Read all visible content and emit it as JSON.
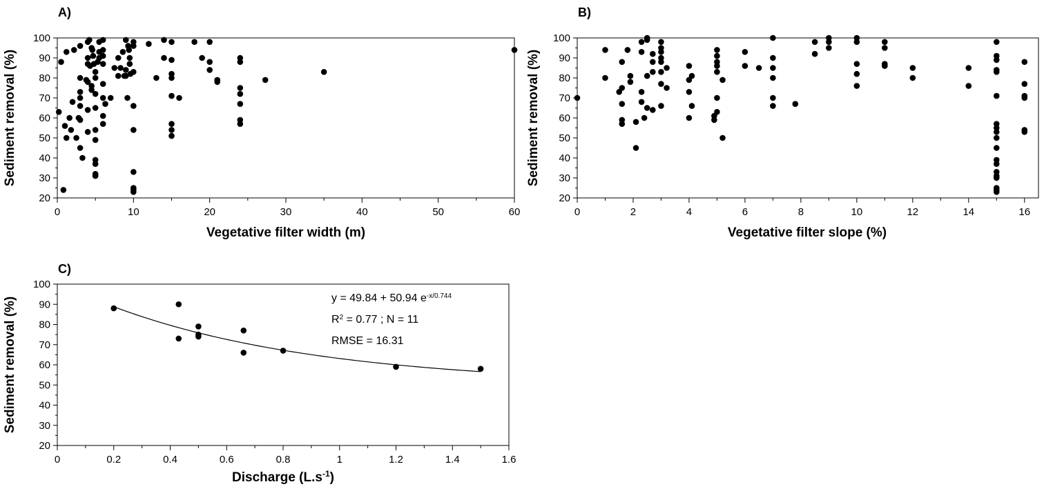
{
  "chart_data": [
    {
      "panel": "A)",
      "type": "scatter",
      "xlabel": "Vegetative filter width (m)",
      "ylabel": "Sediment removal (%)",
      "xlim": [
        0,
        60
      ],
      "ylim": [
        20,
        100
      ],
      "xticks": [
        0,
        10,
        20,
        30,
        40,
        50,
        60
      ],
      "xminor": 5,
      "yticks": [
        20,
        30,
        40,
        50,
        60,
        70,
        80,
        90,
        100
      ],
      "grid": false,
      "points": [
        [
          0.2,
          63
        ],
        [
          0.5,
          88
        ],
        [
          0.8,
          24
        ],
        [
          1,
          56
        ],
        [
          1.2,
          93
        ],
        [
          1.2,
          50
        ],
        [
          1.6,
          60
        ],
        [
          1.8,
          54
        ],
        [
          2,
          68
        ],
        [
          2.2,
          94
        ],
        [
          2.5,
          50
        ],
        [
          2.8,
          60
        ],
        [
          3,
          96
        ],
        [
          3,
          80
        ],
        [
          3,
          73
        ],
        [
          3,
          70
        ],
        [
          3,
          66
        ],
        [
          3,
          59
        ],
        [
          3,
          45
        ],
        [
          3.3,
          40
        ],
        [
          3.8,
          79
        ],
        [
          4,
          98
        ],
        [
          4,
          90
        ],
        [
          4,
          87
        ],
        [
          4,
          78
        ],
        [
          4,
          64
        ],
        [
          4,
          53
        ],
        [
          4.2,
          99
        ],
        [
          4.3,
          86
        ],
        [
          4.5,
          95
        ],
        [
          4.5,
          76
        ],
        [
          4.5,
          74
        ],
        [
          4.6,
          94
        ],
        [
          4.7,
          91
        ],
        [
          4.8,
          87
        ],
        [
          5,
          83
        ],
        [
          5,
          80
        ],
        [
          5,
          72
        ],
        [
          5,
          65
        ],
        [
          5,
          54
        ],
        [
          5,
          49
        ],
        [
          5,
          39
        ],
        [
          5,
          37
        ],
        [
          5,
          32
        ],
        [
          5,
          31
        ],
        [
          5.3,
          88
        ],
        [
          5.5,
          98
        ],
        [
          5.5,
          93
        ],
        [
          5.5,
          90
        ],
        [
          6,
          99
        ],
        [
          6,
          94
        ],
        [
          6,
          91
        ],
        [
          6,
          87
        ],
        [
          6,
          77
        ],
        [
          6,
          70
        ],
        [
          6,
          61
        ],
        [
          6,
          57
        ],
        [
          6.3,
          67
        ],
        [
          7,
          70
        ],
        [
          7.5,
          85
        ],
        [
          8,
          90
        ],
        [
          8,
          81
        ],
        [
          8.3,
          85
        ],
        [
          8.6,
          93
        ],
        [
          8.8,
          81
        ],
        [
          9,
          99
        ],
        [
          9,
          84
        ],
        [
          9,
          81
        ],
        [
          9.2,
          70
        ],
        [
          9.3,
          96
        ],
        [
          9.4,
          94
        ],
        [
          9.5,
          90
        ],
        [
          9.5,
          87
        ],
        [
          9.6,
          82
        ],
        [
          10,
          98
        ],
        [
          10,
          96
        ],
        [
          10,
          83
        ],
        [
          10,
          66
        ],
        [
          10,
          54
        ],
        [
          10,
          33
        ],
        [
          10,
          25
        ],
        [
          10,
          24
        ],
        [
          10,
          23
        ],
        [
          12,
          97
        ],
        [
          13,
          80
        ],
        [
          14,
          99
        ],
        [
          14,
          90
        ],
        [
          15,
          98
        ],
        [
          15,
          89
        ],
        [
          15,
          82
        ],
        [
          15,
          80
        ],
        [
          15,
          71
        ],
        [
          15,
          57
        ],
        [
          15,
          54
        ],
        [
          15,
          51
        ],
        [
          16,
          70
        ],
        [
          18,
          98
        ],
        [
          19,
          90
        ],
        [
          20,
          98
        ],
        [
          20,
          88
        ],
        [
          20,
          84
        ],
        [
          21,
          79
        ],
        [
          21,
          78
        ],
        [
          24,
          90
        ],
        [
          24,
          88
        ],
        [
          24,
          75
        ],
        [
          24,
          72
        ],
        [
          24,
          67
        ],
        [
          24,
          59
        ],
        [
          24,
          57
        ],
        [
          27.3,
          79
        ],
        [
          35,
          83
        ],
        [
          60,
          94
        ]
      ]
    },
    {
      "panel": "B)",
      "type": "scatter",
      "xlabel": "Vegetative filter slope (%)",
      "ylabel": "Sediment removal (%)",
      "xlim": [
        0,
        16.5
      ],
      "ylim": [
        20,
        100
      ],
      "xticks": [
        0,
        2,
        4,
        6,
        8,
        10,
        12,
        14,
        16
      ],
      "xminor": 1,
      "yticks": [
        20,
        30,
        40,
        50,
        60,
        70,
        80,
        90,
        100
      ],
      "grid": false,
      "points": [
        [
          0,
          70
        ],
        [
          1,
          94
        ],
        [
          1,
          80
        ],
        [
          1.5,
          73
        ],
        [
          1.6,
          75
        ],
        [
          1.6,
          88
        ],
        [
          1.6,
          67
        ],
        [
          1.6,
          59
        ],
        [
          1.6,
          57
        ],
        [
          1.8,
          94
        ],
        [
          1.9,
          81
        ],
        [
          1.9,
          78
        ],
        [
          2.1,
          58
        ],
        [
          2.1,
          45
        ],
        [
          2.3,
          98
        ],
        [
          2.3,
          93
        ],
        [
          2.3,
          73
        ],
        [
          2.3,
          68
        ],
        [
          2.4,
          60
        ],
        [
          2.5,
          100
        ],
        [
          2.5,
          99
        ],
        [
          2.5,
          81
        ],
        [
          2.5,
          65
        ],
        [
          2.7,
          92
        ],
        [
          2.7,
          88
        ],
        [
          2.7,
          83
        ],
        [
          2.7,
          64
        ],
        [
          3,
          98
        ],
        [
          3,
          95
        ],
        [
          3,
          93
        ],
        [
          3,
          90
        ],
        [
          3,
          88
        ],
        [
          3,
          83
        ],
        [
          3,
          77
        ],
        [
          3,
          66
        ],
        [
          3.2,
          85
        ],
        [
          3.2,
          75
        ],
        [
          4,
          86
        ],
        [
          4,
          79
        ],
        [
          4,
          73
        ],
        [
          4,
          60
        ],
        [
          4.1,
          81
        ],
        [
          4.1,
          66
        ],
        [
          4.9,
          59
        ],
        [
          4.9,
          61
        ],
        [
          5,
          94
        ],
        [
          5,
          91
        ],
        [
          5,
          88
        ],
        [
          5,
          86
        ],
        [
          5,
          83
        ],
        [
          5,
          70
        ],
        [
          5,
          63
        ],
        [
          5.2,
          79
        ],
        [
          5.2,
          50
        ],
        [
          6,
          93
        ],
        [
          6,
          86
        ],
        [
          6.5,
          85
        ],
        [
          7,
          100
        ],
        [
          7,
          90
        ],
        [
          7,
          85
        ],
        [
          7,
          80
        ],
        [
          7,
          70
        ],
        [
          7,
          66
        ],
        [
          7.8,
          67
        ],
        [
          8.5,
          98
        ],
        [
          8.5,
          92
        ],
        [
          9,
          100
        ],
        [
          9,
          98
        ],
        [
          9,
          95
        ],
        [
          10,
          100
        ],
        [
          10,
          98
        ],
        [
          10,
          87
        ],
        [
          10,
          82
        ],
        [
          10,
          76
        ],
        [
          11,
          98
        ],
        [
          11,
          95
        ],
        [
          11,
          87
        ],
        [
          11,
          86
        ],
        [
          12,
          85
        ],
        [
          12,
          80
        ],
        [
          14,
          85
        ],
        [
          14,
          76
        ],
        [
          15,
          98
        ],
        [
          15,
          91
        ],
        [
          15,
          89
        ],
        [
          15,
          84
        ],
        [
          15,
          83
        ],
        [
          15,
          71
        ],
        [
          15,
          57
        ],
        [
          15,
          55
        ],
        [
          15,
          53
        ],
        [
          15,
          50
        ],
        [
          15,
          45
        ],
        [
          15,
          39
        ],
        [
          15,
          37
        ],
        [
          15,
          33
        ],
        [
          15,
          31
        ],
        [
          15,
          30
        ],
        [
          15,
          25
        ],
        [
          15,
          24
        ],
        [
          15,
          23
        ],
        [
          16,
          88
        ],
        [
          16,
          77
        ],
        [
          16,
          71
        ],
        [
          16,
          70
        ],
        [
          16,
          54
        ],
        [
          16,
          53
        ]
      ]
    },
    {
      "panel": "C)",
      "type": "scatter",
      "xlabel": "Discharge (L.s",
      "xlabel_sup": "-1",
      "xlabel_end": ")",
      "ylabel": "Sediment removal (%)",
      "xlim": [
        0,
        1.6
      ],
      "ylim": [
        20,
        100
      ],
      "xticks": [
        0,
        0.2,
        0.4,
        0.6,
        0.8,
        1,
        1.2,
        1.4,
        1.6
      ],
      "xtick_labels": [
        "0",
        "0.2",
        "0.4",
        "0.6",
        "0.8",
        "1",
        "1.2",
        "1.4",
        "1.6"
      ],
      "xminor": 0.1,
      "yticks": [
        20,
        30,
        40,
        50,
        60,
        70,
        80,
        90,
        100
      ],
      "grid": false,
      "points": [
        [
          0.2,
          88
        ],
        [
          0.43,
          90
        ],
        [
          0.43,
          73
        ],
        [
          0.5,
          79
        ],
        [
          0.5,
          75
        ],
        [
          0.5,
          74
        ],
        [
          0.66,
          77
        ],
        [
          0.66,
          66
        ],
        [
          0.8,
          67
        ],
        [
          1.2,
          59
        ],
        [
          1.5,
          58
        ]
      ],
      "fit": {
        "equation_prefix": "y = 49.84 + 50.94 e",
        "equation_sup": "-x/0.744",
        "r2_prefix": "R",
        "r2_sup": "2",
        "r2_suffix": " = 0.77 ; N = 11",
        "rmse": "RMSE = 16.31",
        "a": 49.84,
        "b": 50.94,
        "c": 0.744,
        "x_range": [
          0.2,
          1.5
        ]
      }
    }
  ]
}
